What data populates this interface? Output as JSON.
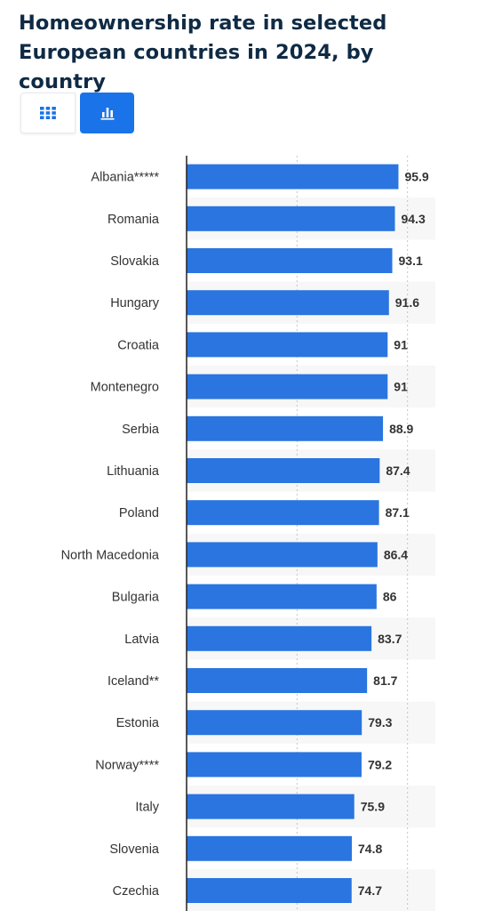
{
  "title": "Homeownership rate in selected European countries in 2024, by country",
  "toolbar": {
    "table_icon": "grid-icon",
    "chart_icon": "bar-chart-icon",
    "active_color": "#1a73e8"
  },
  "chart_data": {
    "type": "bar",
    "orientation": "horizontal",
    "categories": [
      "Albania*****",
      "Romania",
      "Slovakia",
      "Hungary",
      "Croatia",
      "Montenegro",
      "Serbia",
      "Lithuania",
      "Poland",
      "North Macedonia",
      "Bulgaria",
      "Latvia",
      "Iceland**",
      "Estonia",
      "Norway****",
      "Italy",
      "Slovenia",
      "Czechia"
    ],
    "values": [
      95.9,
      94.3,
      93.1,
      91.6,
      91,
      91,
      88.9,
      87.4,
      87.1,
      86.4,
      86,
      83.7,
      81.7,
      79.3,
      79.2,
      75.9,
      74.8,
      74.7
    ],
    "value_labels": [
      "95.9",
      "94.3",
      "93.1",
      "91.6",
      "91",
      "91",
      "88.9",
      "87.4",
      "87.1",
      "86.4",
      "86",
      "83.7",
      "81.7",
      "79.3",
      "79.2",
      "75.9",
      "74.8",
      "74.7"
    ],
    "xlim": [
      0,
      150
    ],
    "grid": true,
    "bar_color": "#2a75e0",
    "alt_row_color": "#f7f7f7",
    "title": "",
    "xlabel": "",
    "ylabel": ""
  }
}
